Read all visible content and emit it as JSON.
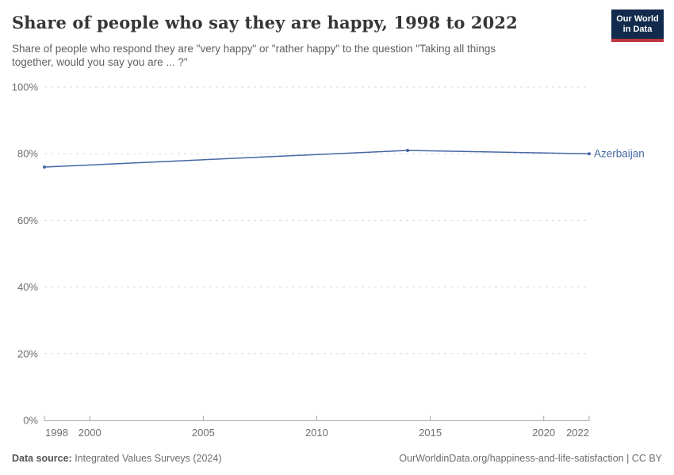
{
  "header": {
    "title": "Share of people who say they are happy, 1998 to 2022",
    "subtitle_line1": "Share of people who respond they are \"very happy\" or \"rather happy\" to the question \"Taking all things",
    "subtitle_line2": "together, would you say you are ... ?\"",
    "logo": {
      "line1": "Our World",
      "line2": "in Data",
      "bg_color": "#122b4d",
      "accent_color": "#c0343f"
    }
  },
  "chart_data": {
    "type": "line",
    "title": "Share of people who say they are happy, 1998 to 2022",
    "xlabel": "",
    "ylabel": "",
    "xlim": [
      1998,
      2022
    ],
    "ylim": [
      0,
      100
    ],
    "grid": "horizontal-dashed",
    "legend_position": "end-of-line-label",
    "x_axis": [
      {
        "value": 1998,
        "label": "1998"
      },
      {
        "value": 2000,
        "label": "2000"
      },
      {
        "value": 2005,
        "label": "2005"
      },
      {
        "value": 2010,
        "label": "2010"
      },
      {
        "value": 2015,
        "label": "2015"
      },
      {
        "value": 2020,
        "label": "2020"
      },
      {
        "value": 2022,
        "label": "2022"
      }
    ],
    "y_axis": [
      {
        "value": 0,
        "label": "0%"
      },
      {
        "value": 20,
        "label": "20%"
      },
      {
        "value": 40,
        "label": "40%"
      },
      {
        "value": 60,
        "label": "60%"
      },
      {
        "value": 80,
        "label": "80%"
      },
      {
        "value": 100,
        "label": "100%"
      }
    ],
    "series": [
      {
        "name": "Azerbaijan",
        "color": "#4567a5",
        "points": [
          {
            "x": 1998,
            "y": 76
          },
          {
            "x": 2014,
            "y": 81
          },
          {
            "x": 2022,
            "y": 80
          }
        ]
      }
    ],
    "colors": {
      "gridline": "#dadada",
      "axis": "#a8a8a8",
      "tick_label": "#6e6e6e"
    }
  },
  "footer": {
    "source_label": "Data source:",
    "source_text": " Integrated Values Surveys (2024)",
    "right_text": "OurWorldinData.org/happiness-and-life-satisfaction | CC BY"
  }
}
